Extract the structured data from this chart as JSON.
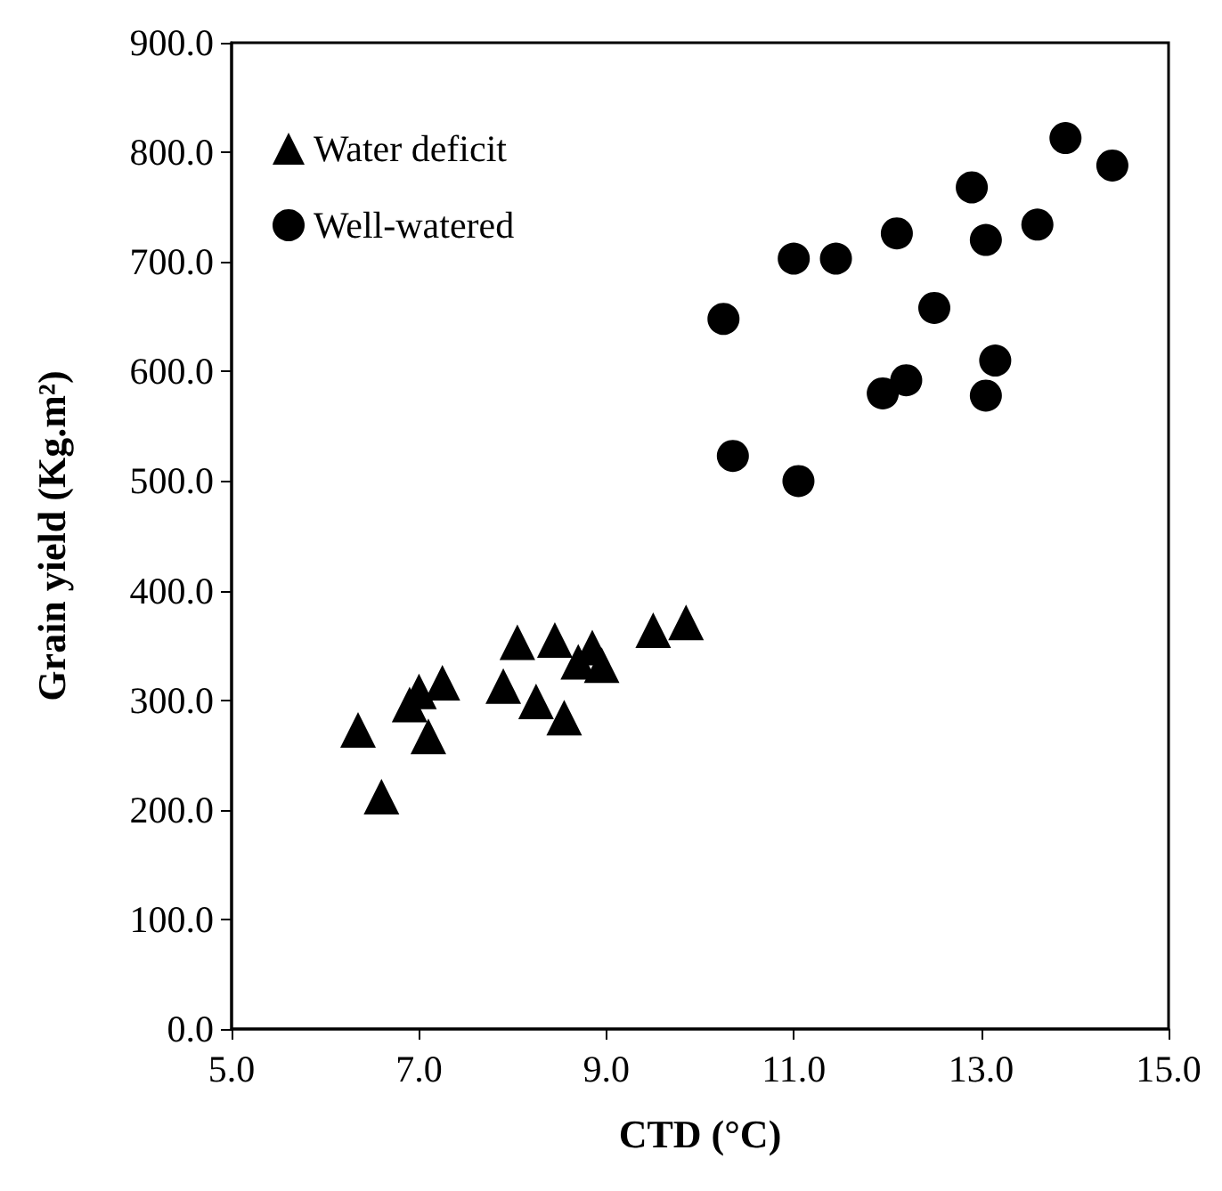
{
  "chart_data": {
    "type": "scatter",
    "xlabel": "CTD (°C)",
    "ylabel": "Grain yield (Kg.m²)",
    "xlim": [
      5,
      15
    ],
    "ylim": [
      0,
      900
    ],
    "xticks": [
      {
        "value": 5,
        "label": "5.0"
      },
      {
        "value": 7,
        "label": "7.0"
      },
      {
        "value": 9,
        "label": "9.0"
      },
      {
        "value": 11,
        "label": "11.0"
      },
      {
        "value": 13,
        "label": "13.0"
      },
      {
        "value": 15,
        "label": "15.0"
      }
    ],
    "yticks": [
      {
        "value": 0,
        "label": "0.0"
      },
      {
        "value": 100,
        "label": "100.0"
      },
      {
        "value": 200,
        "label": "200.0"
      },
      {
        "value": 300,
        "label": "300.0"
      },
      {
        "value": 400,
        "label": "400.0"
      },
      {
        "value": 500,
        "label": "500.0"
      },
      {
        "value": 600,
        "label": "600.0"
      },
      {
        "value": 700,
        "label": "700.0"
      },
      {
        "value": 800,
        "label": "800.0"
      },
      {
        "value": 900,
        "label": "900.0"
      }
    ],
    "grid": false,
    "legend": "top left",
    "series": [
      {
        "name": "Water deficit",
        "color": "#000000",
        "marker": "triangle",
        "x": [
          6.35,
          6.6,
          6.9,
          7.0,
          7.1,
          7.25,
          7.9,
          8.05,
          8.25,
          8.45,
          8.55,
          8.7,
          8.85,
          8.95,
          9.5,
          9.85
        ],
        "values": [
          273,
          212,
          296,
          308,
          267,
          316,
          313,
          353,
          299,
          355,
          284,
          335,
          348,
          332,
          364,
          371
        ]
      },
      {
        "name": "Well-watered",
        "color": "#000000",
        "marker": "circle",
        "x": [
          10.25,
          10.35,
          11.0,
          11.05,
          11.45,
          11.95,
          12.1,
          12.2,
          12.5,
          12.9,
          13.05,
          13.05,
          13.15,
          13.6,
          13.9,
          14.4
        ],
        "values": [
          648,
          523,
          703,
          500,
          703,
          580,
          726,
          592,
          658,
          768,
          720,
          578,
          610,
          734,
          813,
          788
        ]
      }
    ]
  }
}
